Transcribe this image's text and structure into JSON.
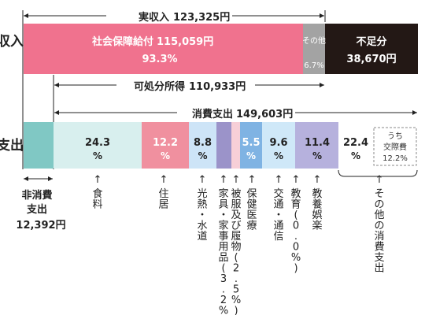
{
  "chart_data": {
    "type": "bar",
    "labels": {
      "income_side": "収入",
      "expenditure_side": "支出"
    },
    "income": {
      "total_label": "実収入",
      "total_value": "123,325円",
      "disposable_label": "可処分所得",
      "disposable_value": "110,933円",
      "segments": [
        {
          "name": "社会保障給付",
          "amount": "115,059円",
          "pct": "93.3%",
          "value": 93.3,
          "color": "#f0728e"
        },
        {
          "name": "その他",
          "pct": "6.7%",
          "value": 6.7,
          "color": "#a3a3a3"
        },
        {
          "name": "不足分",
          "amount": "38,670円",
          "color": "#231815"
        }
      ]
    },
    "expenditure": {
      "consumption_label": "消費支出",
      "consumption_value": "149,603円",
      "non_consumption_label_1": "非消費",
      "non_consumption_label_2": "支出",
      "non_consumption_value": "12,392円",
      "categories": [
        {
          "name": "食料",
          "pct": "24.3",
          "value": 24.3,
          "color": "#d8efee"
        },
        {
          "name": "住居",
          "pct": "12.2",
          "value": 12.2,
          "color": "#f0909f"
        },
        {
          "name": "光熱・水道",
          "pct": "8.8",
          "value": 8.8,
          "color": "#cde4f7"
        },
        {
          "name": "家具・家事用品",
          "pct": "3.2",
          "value": 3.2,
          "color": "#9b93c9"
        },
        {
          "name": "被服及び履物",
          "pct": "2.5",
          "value": 2.5,
          "color": "#f7cfd7"
        },
        {
          "name": "保健医療",
          "pct": "5.5",
          "value": 5.5,
          "color": "#7fb3e3"
        },
        {
          "name": "交通・通信",
          "pct": "9.6",
          "value": 9.6,
          "color": "#cfe8f8"
        },
        {
          "name": "教育",
          "pct": "0.0",
          "value": 0.0,
          "color": "#b6b1dd"
        },
        {
          "name": "教養娯楽",
          "pct": "11.4",
          "value": 11.4,
          "color": "#b6b1dd"
        },
        {
          "name": "その他の消費支出",
          "pct": "22.4",
          "value": 22.4,
          "color": "#ffffff"
        }
      ],
      "other_breakdown_label_1": "うち",
      "other_breakdown_label_2": "交際費",
      "other_breakdown_value": "12.2%"
    },
    "percent_sign": "%",
    "arrow": "↑"
  }
}
